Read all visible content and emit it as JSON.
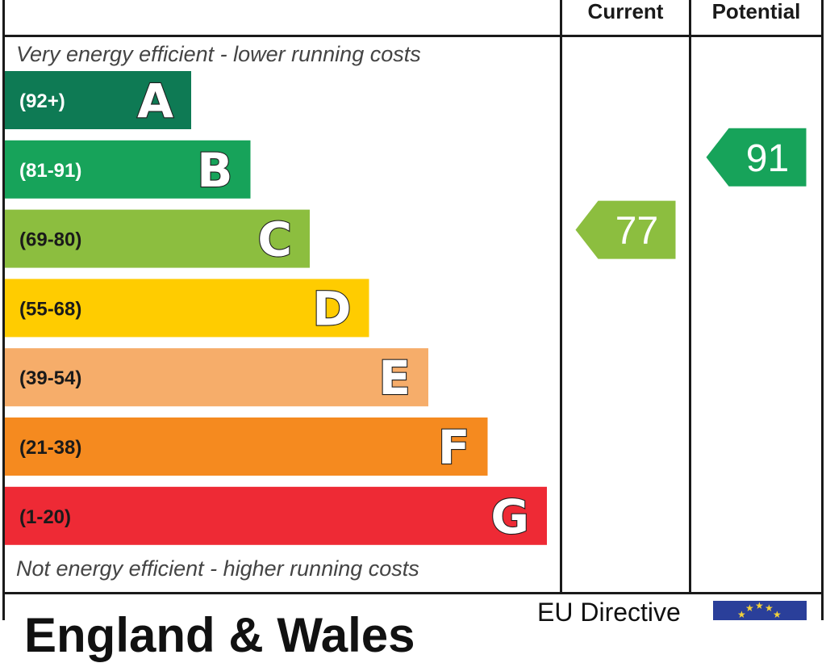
{
  "header": {
    "current_label": "Current",
    "potential_label": "Potential"
  },
  "captions": {
    "top": "Very energy efficient - lower running costs",
    "bottom": "Not energy efficient - higher running costs"
  },
  "footer": {
    "region": "England & Wales",
    "eu_directive": "EU Directive"
  },
  "chart_data": {
    "type": "bar",
    "categories": [
      "A",
      "B",
      "C",
      "D",
      "E",
      "F",
      "G"
    ],
    "ranges": [
      "(92+)",
      "(81-91)",
      "(69-80)",
      "(55-68)",
      "(39-54)",
      "(21-38)",
      "(1-20)"
    ],
    "range_min": [
      92,
      81,
      69,
      55,
      39,
      21,
      1
    ],
    "range_max": [
      100,
      91,
      80,
      68,
      54,
      38,
      20
    ],
    "band_colors": [
      "#0e7a54",
      "#17a35a",
      "#8cbe3f",
      "#ffcc00",
      "#f6ad6a",
      "#f58a1f",
      "#ee2a35"
    ],
    "label_colors": [
      "#ffffff",
      "#ffffff",
      "#1a1a1a",
      "#1a1a1a",
      "#1a1a1a",
      "#1a1a1a",
      "#1a1a1a"
    ],
    "current": {
      "value": 77,
      "band": "C",
      "color": "#8cbe3f"
    },
    "potential": {
      "value": 91,
      "band": "B",
      "color": "#17a35a"
    }
  }
}
